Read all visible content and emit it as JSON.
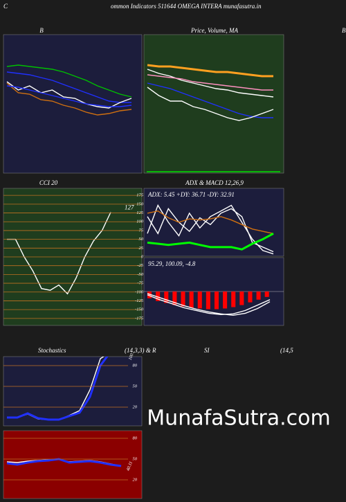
{
  "header": {
    "left": "C",
    "title": "ommon  Indicators 511644  OMEGA INTERA munafasutra.in",
    "right": "B"
  },
  "stoch_titles": [
    "Stochastics",
    "(14,3,3) & R",
    "SI",
    "(14,5"
  ],
  "watermark": "MunafaSutra.com",
  "chart_data": [
    {
      "type": "line",
      "title": "B",
      "ylim": [
        0,
        100
      ],
      "series": [
        {
          "color": "#00c000",
          "values": [
            77,
            78,
            77,
            76,
            75,
            73,
            70,
            67,
            63,
            60,
            57,
            55
          ]
        },
        {
          "color": "#2030ff",
          "values": [
            73,
            72,
            71,
            69,
            67,
            64,
            61,
            58,
            55,
            52,
            51,
            51
          ]
        },
        {
          "color": "#ffffff",
          "values": [
            66,
            60,
            63,
            58,
            60,
            55,
            54,
            50,
            48,
            47,
            51,
            54
          ]
        },
        {
          "color": "#d07010",
          "values": [
            65,
            58,
            57,
            53,
            52,
            49,
            47,
            44,
            42,
            43,
            45,
            46
          ]
        },
        {
          "color": "#2030ff",
          "values": [
            63,
            62,
            60,
            58,
            56,
            54,
            52,
            50,
            49,
            48,
            48,
            49
          ]
        }
      ]
    },
    {
      "type": "line",
      "title": "Price,  Volume,  MA",
      "ylim": [
        0,
        100
      ],
      "series": [
        {
          "color": "#ffa020",
          "values": [
            78,
            77,
            77,
            76,
            75,
            74,
            73,
            73,
            72,
            71,
            70,
            70
          ]
        },
        {
          "color": "#ffffff",
          "values": [
            75,
            72,
            70,
            67,
            65,
            63,
            61,
            60,
            58,
            57,
            56,
            55
          ]
        },
        {
          "color": "#ff90c0",
          "values": [
            71,
            70,
            69,
            68,
            66,
            65,
            64,
            63,
            62,
            61,
            60,
            60
          ]
        },
        {
          "color": "#2030ff",
          "values": [
            65,
            63,
            61,
            58,
            55,
            52,
            49,
            46,
            43,
            41,
            40,
            40
          ]
        },
        {
          "color": "#ffffff",
          "values": [
            62,
            56,
            52,
            52,
            48,
            46,
            43,
            40,
            38,
            40,
            43,
            46
          ]
        }
      ]
    },
    {
      "type": "line",
      "title": "CCI 20",
      "ylim": [
        -195,
        195
      ],
      "yticks": [
        175,
        150,
        125,
        100,
        75,
        50,
        25,
        0,
        -25,
        -50,
        -75,
        -100,
        -125,
        -150,
        -175
      ],
      "annotation": "127",
      "series": [
        {
          "color": "#ffffff",
          "values": [
            50,
            50,
            0,
            -40,
            -90,
            -95,
            -80,
            -105,
            -60,
            0,
            45,
            75,
            127
          ]
        }
      ]
    },
    {
      "type": "line",
      "title": "ADX  & MACD 12,26,9",
      "text": "ADX: 5.45 +DY: 36.71 -DY: 32.91",
      "ylim": [
        0,
        60
      ],
      "series": [
        {
          "color": "#ffffff",
          "values": [
            20,
            45,
            30,
            18,
            38,
            25,
            35,
            40,
            45,
            30,
            15,
            5,
            2
          ]
        },
        {
          "color": "#ffffff",
          "values": [
            35,
            20,
            42,
            30,
            22,
            34,
            28,
            38,
            42,
            35,
            12,
            8,
            4
          ]
        },
        {
          "color": "#d07010",
          "values": [
            38,
            40,
            34,
            30,
            33,
            32,
            33,
            35,
            32,
            28,
            24,
            22,
            20
          ]
        },
        {
          "color": "#00ff00",
          "values": [
            12,
            11,
            10,
            11,
            12,
            10,
            8,
            8,
            8,
            6,
            11,
            15,
            20
          ]
        }
      ]
    },
    {
      "type": "macd",
      "text": "95.29, 100.09, -4.8",
      "ylim": [
        -50,
        50
      ],
      "bars_color": "#ff0000",
      "bars": [
        -10,
        -14,
        -17,
        -20,
        -22,
        -24,
        -25,
        -26,
        -26,
        -25,
        -23,
        -20,
        -16,
        -12,
        -8
      ],
      "series": [
        {
          "color": "#ffffff",
          "values": [
            -5,
            -12,
            -18,
            -24,
            -28,
            -32,
            -34,
            -33,
            -28,
            -20,
            -12
          ]
        },
        {
          "color": "#ffffff",
          "values": [
            -3,
            -9,
            -15,
            -21,
            -26,
            -30,
            -33,
            -35,
            -32,
            -25,
            -15
          ]
        }
      ]
    },
    {
      "type": "line",
      "ylim": [
        -7,
        93
      ],
      "yticks": [
        80,
        50,
        20
      ],
      "annotation": "100",
      "series": [
        {
          "color": "#ffffff",
          "values": [
            5,
            5,
            10,
            3,
            2,
            2,
            8,
            15,
            45,
            90,
            100,
            100
          ]
        },
        {
          "color": "#2030ff",
          "values": [
            5,
            5,
            11,
            4,
            2,
            2,
            7,
            12,
            35,
            80,
            100,
            100
          ]
        }
      ]
    },
    {
      "type": "line",
      "ylim": [
        -7,
        91
      ],
      "yticks": [
        80,
        50,
        20
      ],
      "annotation": "40.11",
      "series": [
        {
          "color": "#ffffff",
          "values": [
            46,
            45,
            47,
            48,
            49,
            50,
            46,
            47,
            48,
            46,
            43,
            40
          ]
        },
        {
          "color": "#2030ff",
          "values": [
            44,
            42,
            45,
            47,
            48,
            50,
            45,
            46,
            47,
            45,
            42,
            40
          ]
        }
      ]
    }
  ]
}
